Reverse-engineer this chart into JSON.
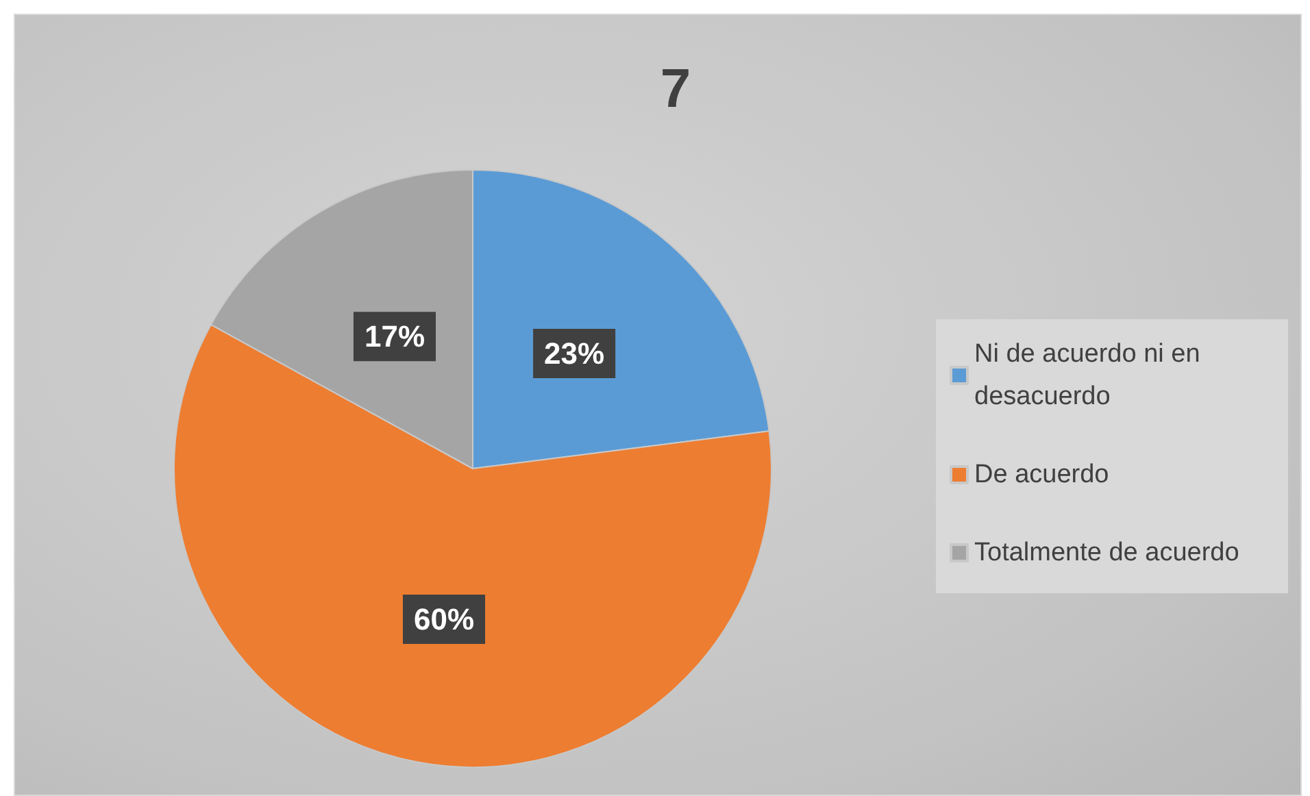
{
  "chart_data": {
    "type": "pie",
    "title": "7",
    "categories": [
      "Ni de acuerdo ni en desacuerdo",
      "De acuerdo",
      "Totalmente de acuerdo"
    ],
    "values": [
      23,
      60,
      17
    ],
    "colors": [
      "#5b9bd5",
      "#ed7d31",
      "#a5a5a5"
    ],
    "value_labels": [
      "23%",
      "60%",
      "17%"
    ],
    "legend": "right"
  }
}
